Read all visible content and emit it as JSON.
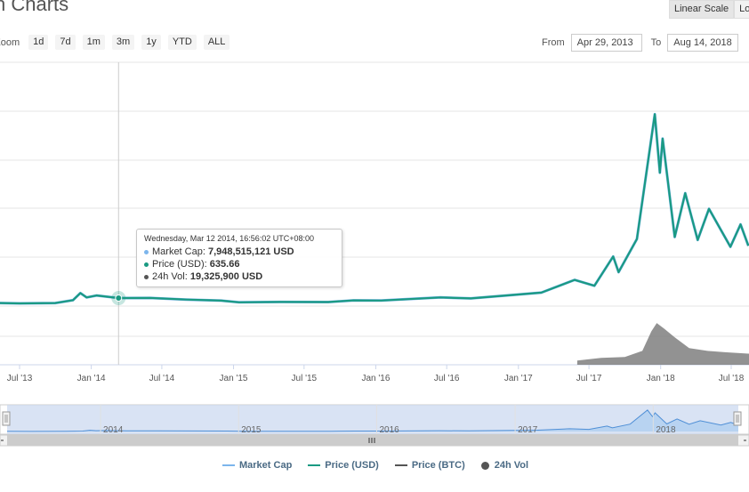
{
  "header": {
    "title": "n Charts",
    "scale_buttons": [
      "Linear Scale",
      "Lo"
    ]
  },
  "zoom": {
    "label": "Zoom",
    "buttons": [
      "1d",
      "7d",
      "1m",
      "3m",
      "1y",
      "YTD",
      "ALL"
    ]
  },
  "range": {
    "from_label": "From",
    "from_value": "Apr 29, 2013",
    "to_label": "To",
    "to_value": "Aug 14, 2018"
  },
  "tooltip": {
    "date": "Wednesday, Mar 12 2014, 16:56:02 UTC+08:00",
    "market_cap_label": "Market Cap:",
    "market_cap_value": "7,948,515,121 USD",
    "price_label": "Price (USD):",
    "price_value": "635.66",
    "vol_label": "24h Vol:",
    "vol_value": "19,325,900 USD"
  },
  "legend": [
    "Market Cap",
    "Price (USD)",
    "Price (BTC)",
    "24h Vol"
  ],
  "colors": {
    "market_cap": "#7cb5ec",
    "price_usd": "#1a9a82",
    "price_btc": "#555555",
    "volume": "#777777",
    "navigator_fill": "#c9d7f0"
  },
  "chart_data": {
    "type": "line",
    "title": "",
    "x_tick_labels": [
      "Jul '13",
      "Jan '14",
      "Jul '14",
      "Jan '15",
      "Jul '15",
      "Jan '16",
      "Jul '16",
      "Jan '17",
      "Jul '17",
      "Jan '18",
      "Jul '18"
    ],
    "navigator_labels": [
      "2014",
      "2015",
      "2016",
      "2017",
      "2018"
    ],
    "x_range": [
      "2013-04-29",
      "2018-08-14"
    ],
    "series": [
      {
        "name": "Price (USD)",
        "points": [
          [
            "2013-04-29",
            140
          ],
          [
            "2013-07-01",
            90
          ],
          [
            "2013-10-01",
            125
          ],
          [
            "2013-11-15",
            420
          ],
          [
            "2013-12-04",
            1150
          ],
          [
            "2013-12-20",
            700
          ],
          [
            "2014-01-15",
            900
          ],
          [
            "2014-03-12",
            636
          ],
          [
            "2014-06-01",
            650
          ],
          [
            "2014-09-01",
            480
          ],
          [
            "2014-12-01",
            375
          ],
          [
            "2015-01-15",
            200
          ],
          [
            "2015-05-01",
            235
          ],
          [
            "2015-09-01",
            230
          ],
          [
            "2015-11-05",
            400
          ],
          [
            "2016-01-15",
            380
          ],
          [
            "2016-06-15",
            700
          ],
          [
            "2016-09-01",
            600
          ],
          [
            "2017-01-01",
            1000
          ],
          [
            "2017-03-01",
            1200
          ],
          [
            "2017-05-25",
            2500
          ],
          [
            "2017-07-15",
            1900
          ],
          [
            "2017-09-01",
            4900
          ],
          [
            "2017-09-15",
            3300
          ],
          [
            "2017-11-01",
            6700
          ],
          [
            "2017-12-17",
            19500
          ],
          [
            "2017-12-30",
            13500
          ],
          [
            "2018-01-06",
            17000
          ],
          [
            "2018-02-06",
            6900
          ],
          [
            "2018-03-05",
            11400
          ],
          [
            "2018-04-06",
            6600
          ],
          [
            "2018-05-05",
            9800
          ],
          [
            "2018-06-29",
            5900
          ],
          [
            "2018-07-25",
            8200
          ],
          [
            "2018-08-14",
            6000
          ]
        ]
      },
      {
        "name": "24h Vol",
        "points": [
          [
            "2017-06-01",
            1.5
          ],
          [
            "2017-08-01",
            2.5
          ],
          [
            "2017-10-01",
            2.8
          ],
          [
            "2017-11-15",
            5.0
          ],
          [
            "2017-12-08",
            12
          ],
          [
            "2017-12-22",
            15
          ],
          [
            "2018-01-10",
            13
          ],
          [
            "2018-02-05",
            10
          ],
          [
            "2018-03-15",
            6
          ],
          [
            "2018-05-01",
            5
          ],
          [
            "2018-06-15",
            4.5
          ],
          [
            "2018-08-14",
            4
          ]
        ]
      }
    ]
  }
}
